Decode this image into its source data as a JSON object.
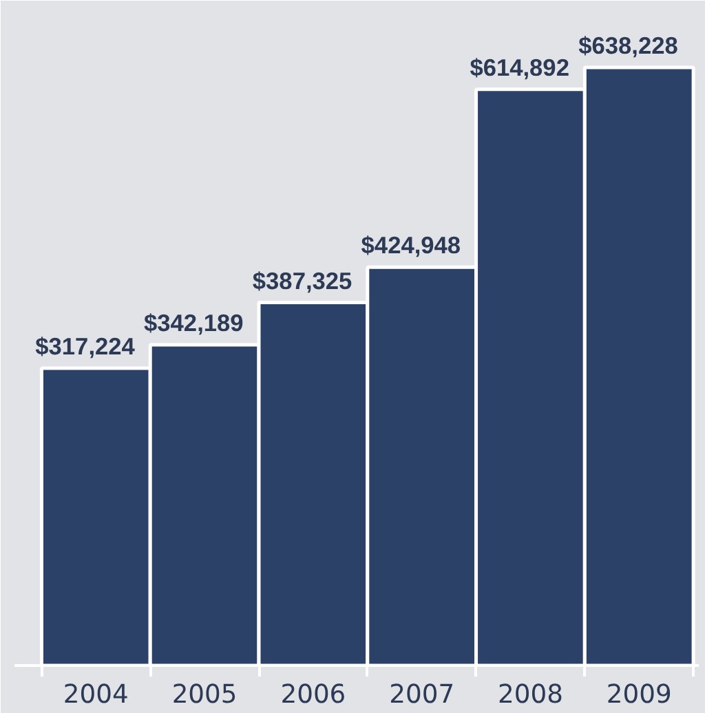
{
  "chart_data": {
    "type": "bar",
    "categories": [
      "2004",
      "2005",
      "2006",
      "2007",
      "2008",
      "2009"
    ],
    "values": [
      317224,
      342189,
      387325,
      424948,
      614892,
      638228
    ],
    "value_labels": [
      "$317,224",
      "$342,189",
      "$387,325",
      "$424,948",
      "$614,892",
      "$638,228"
    ],
    "color": "#2c4168"
  }
}
